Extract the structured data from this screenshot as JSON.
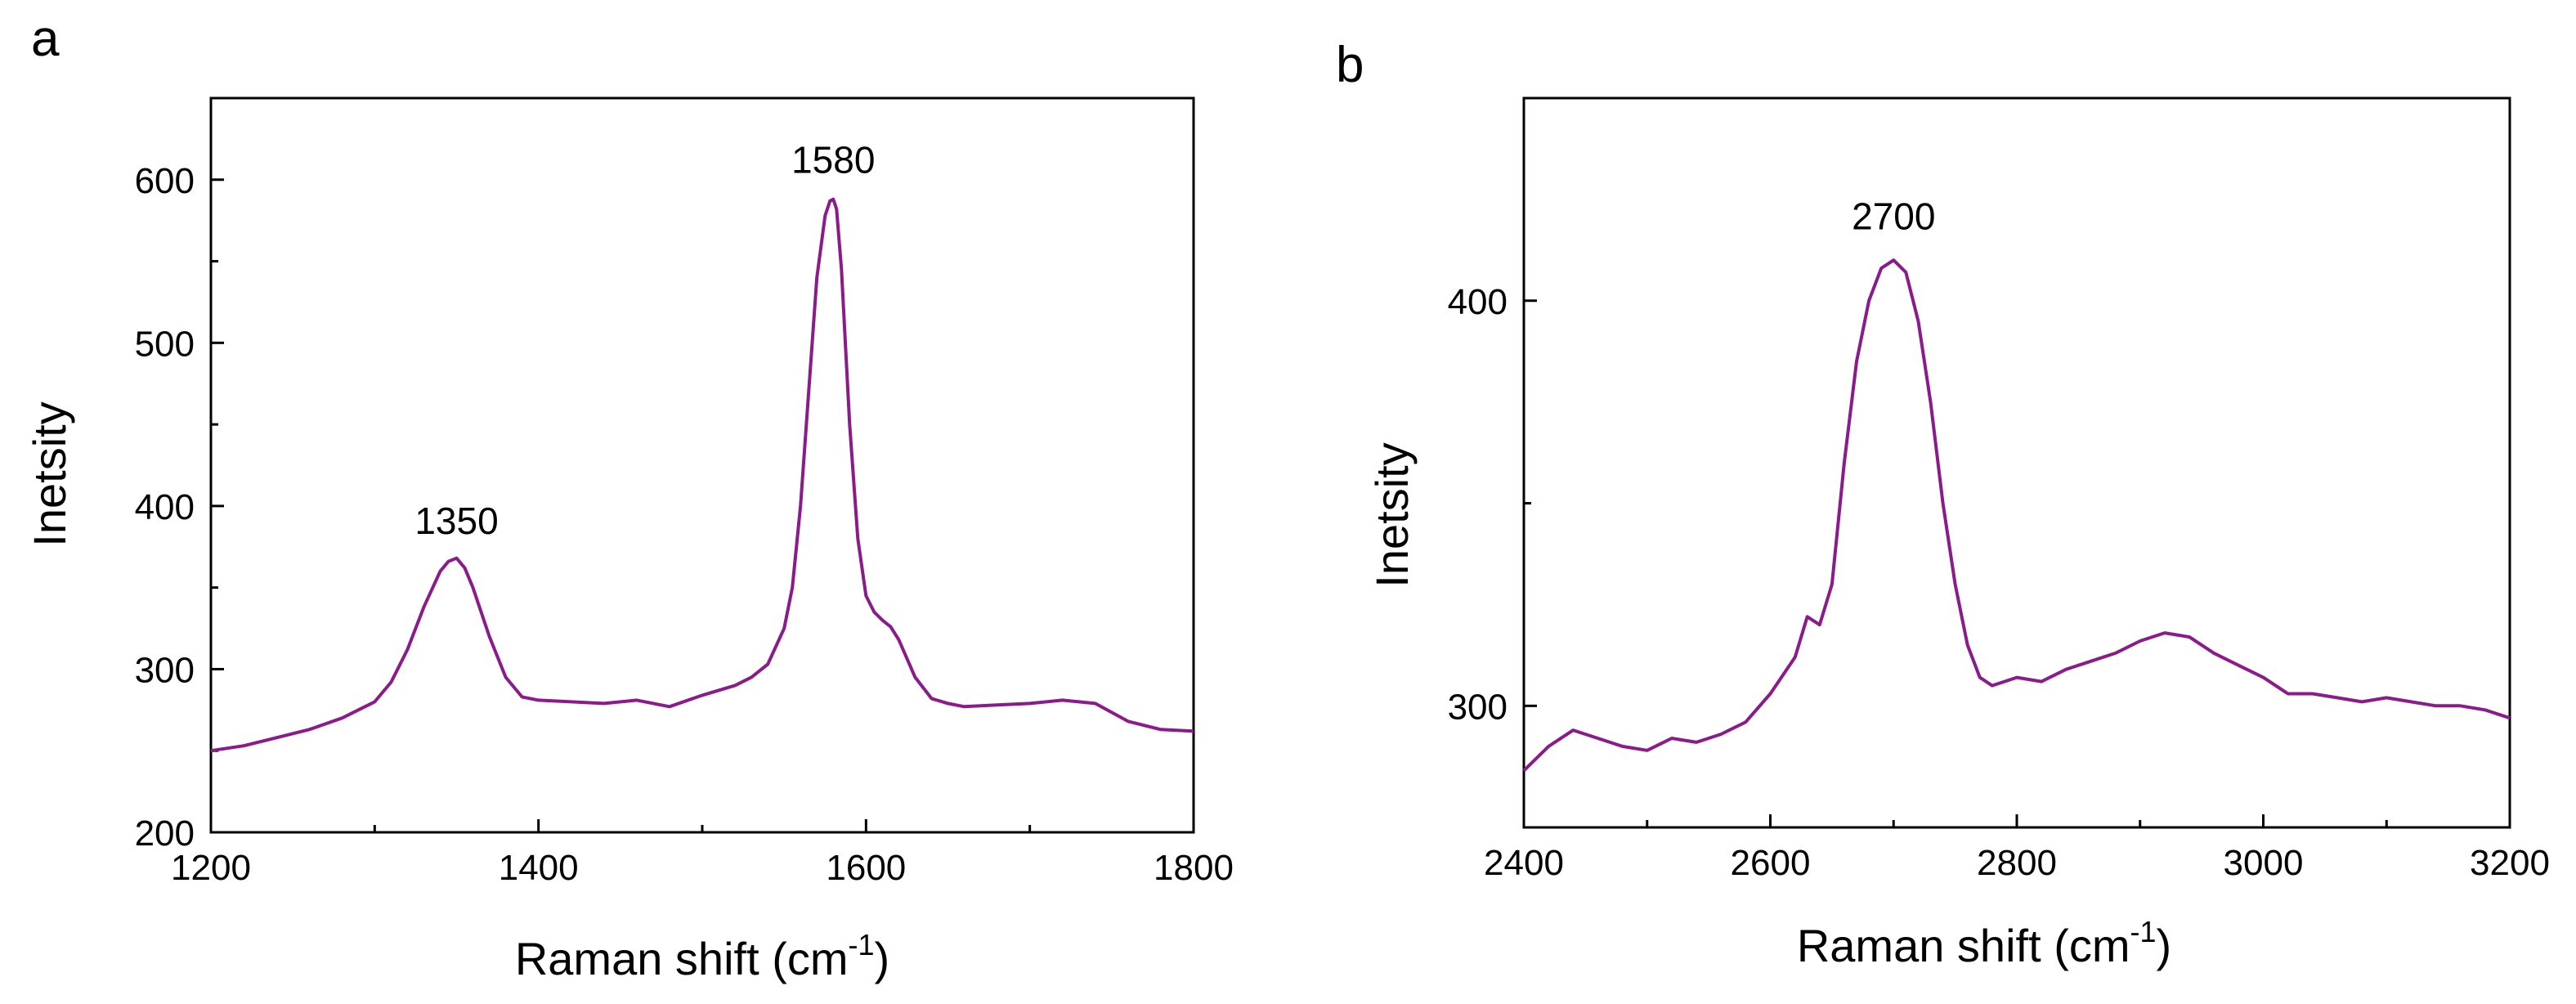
{
  "colors": {
    "series": "#8B1A8B",
    "axis": "#000000"
  },
  "chart_data": [
    {
      "panel_label": "a",
      "type": "line",
      "title": "",
      "xlabel": "Raman shift (cm",
      "xlabel_sup": "-1",
      "xlabel_end": ")",
      "ylabel": "Inetsity",
      "xlim": [
        1200,
        1800
      ],
      "ylim": [
        200,
        650
      ],
      "xticks": [
        1200,
        1400,
        1600,
        1800
      ],
      "xticks_minor": [
        1300,
        1500,
        1700
      ],
      "yticks": [
        200,
        300,
        400,
        500,
        600
      ],
      "yticks_minor": [
        250,
        350,
        450,
        550
      ],
      "annotations": [
        {
          "text": "1350",
          "x": 1350,
          "y": 369
        },
        {
          "text": "1580",
          "x": 1580,
          "y": 590
        }
      ],
      "series": [
        {
          "name": "Raman spectrum",
          "x": [
            1200,
            1220,
            1240,
            1260,
            1280,
            1300,
            1310,
            1320,
            1330,
            1340,
            1345,
            1350,
            1355,
            1360,
            1370,
            1380,
            1390,
            1400,
            1420,
            1440,
            1460,
            1480,
            1500,
            1520,
            1530,
            1540,
            1550,
            1555,
            1560,
            1565,
            1570,
            1575,
            1578,
            1580,
            1582,
            1585,
            1590,
            1595,
            1600,
            1605,
            1610,
            1615,
            1620,
            1630,
            1640,
            1650,
            1660,
            1680,
            1700,
            1720,
            1740,
            1760,
            1780,
            1800
          ],
          "y": [
            250,
            253,
            258,
            263,
            270,
            280,
            292,
            312,
            338,
            360,
            366,
            368,
            362,
            350,
            320,
            295,
            283,
            281,
            280,
            279,
            281,
            277,
            284,
            290,
            295,
            303,
            325,
            350,
            400,
            470,
            540,
            578,
            587,
            588,
            582,
            545,
            450,
            380,
            345,
            335,
            330,
            326,
            318,
            295,
            282,
            279,
            277,
            278,
            279,
            281,
            279,
            268,
            263,
            262
          ]
        }
      ]
    },
    {
      "panel_label": "b",
      "type": "line",
      "title": "",
      "xlabel": "Raman shift (cm",
      "xlabel_sup": "-1",
      "xlabel_end": ")",
      "ylabel": "Inetsity",
      "xlim": [
        2400,
        3200
      ],
      "ylim": [
        270,
        450
      ],
      "xticks": [
        2400,
        2600,
        2800,
        3000,
        3200
      ],
      "xticks_minor": [
        2500,
        2700,
        2900,
        3100
      ],
      "yticks": [
        300,
        400
      ],
      "yticks_minor": [
        350
      ],
      "annotations": [
        {
          "text": "2700",
          "x": 2700,
          "y": 412
        }
      ],
      "series": [
        {
          "name": "Raman spectrum",
          "x": [
            2400,
            2420,
            2440,
            2460,
            2480,
            2500,
            2520,
            2540,
            2560,
            2580,
            2600,
            2620,
            2630,
            2640,
            2650,
            2660,
            2670,
            2680,
            2690,
            2700,
            2710,
            2720,
            2730,
            2740,
            2750,
            2760,
            2770,
            2780,
            2800,
            2820,
            2840,
            2860,
            2880,
            2900,
            2920,
            2940,
            2960,
            2980,
            3000,
            3020,
            3040,
            3060,
            3080,
            3100,
            3120,
            3140,
            3160,
            3180,
            3200
          ],
          "y": [
            284,
            290,
            294,
            292,
            290,
            289,
            292,
            291,
            293,
            296,
            303,
            312,
            322,
            320,
            330,
            360,
            385,
            400,
            408,
            410,
            407,
            395,
            375,
            350,
            330,
            315,
            307,
            305,
            307,
            306,
            309,
            311,
            313,
            316,
            318,
            317,
            313,
            310,
            307,
            303,
            303,
            302,
            301,
            302,
            301,
            300,
            300,
            299,
            297
          ]
        }
      ]
    }
  ]
}
